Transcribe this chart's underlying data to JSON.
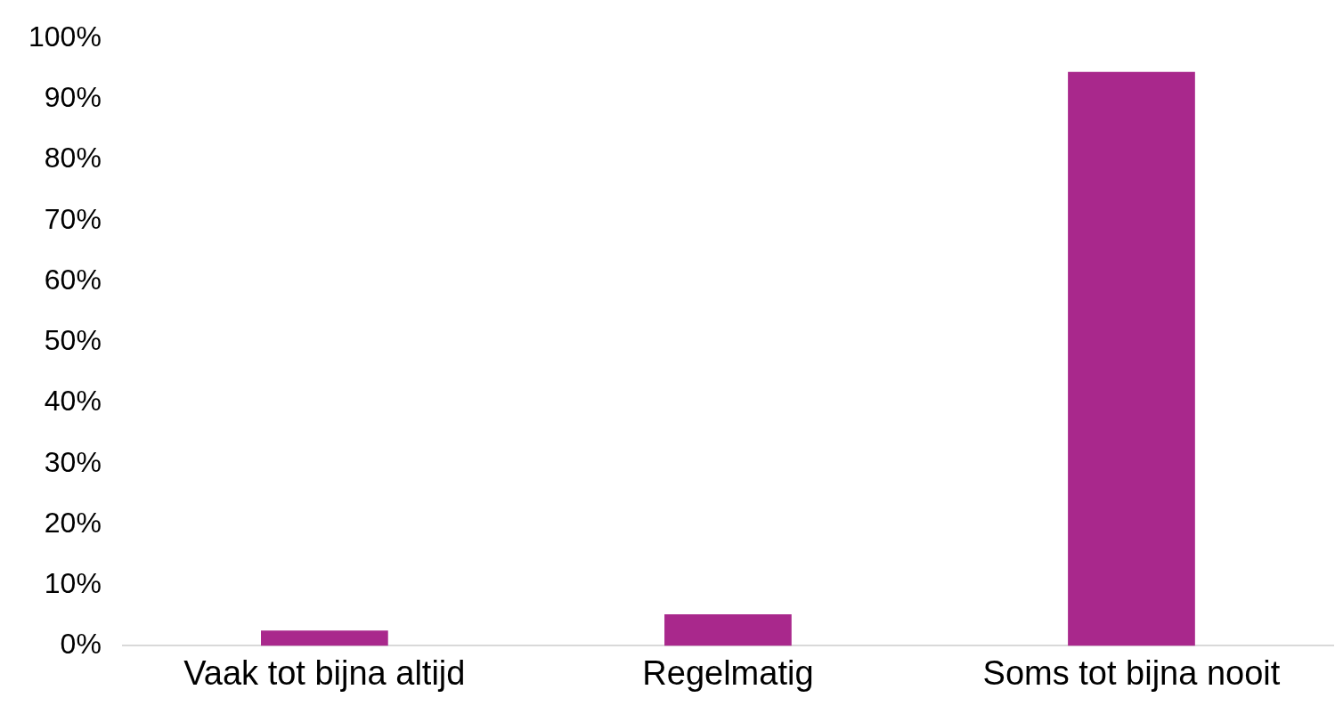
{
  "chart_data": {
    "type": "bar",
    "categories": [
      "Vaak tot bijna altijd",
      "Regelmatig",
      "Soms tot bijna nooit"
    ],
    "values": [
      2.5,
      5.2,
      94.5
    ],
    "color": "#a9288c",
    "ylim": [
      0,
      100
    ],
    "yticks": [
      {
        "value": 0,
        "label": "0%"
      },
      {
        "value": 10,
        "label": "10%"
      },
      {
        "value": 20,
        "label": "20%"
      },
      {
        "value": 30,
        "label": "30%"
      },
      {
        "value": 40,
        "label": "40%"
      },
      {
        "value": 50,
        "label": "50%"
      },
      {
        "value": 60,
        "label": "60%"
      },
      {
        "value": 70,
        "label": "70%"
      },
      {
        "value": 80,
        "label": "80%"
      },
      {
        "value": 90,
        "label": "90%"
      },
      {
        "value": 100,
        "label": "100%"
      }
    ],
    "grid": false
  }
}
